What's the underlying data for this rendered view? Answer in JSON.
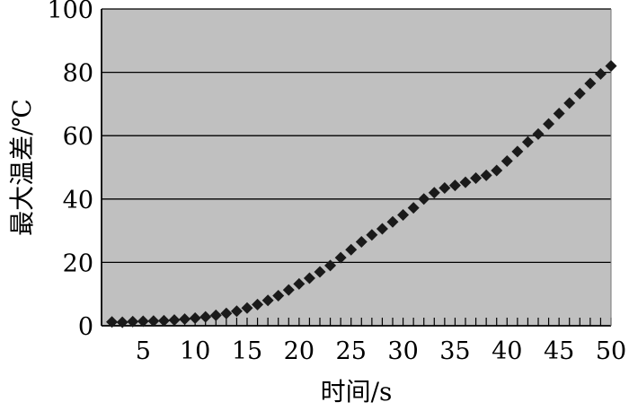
{
  "chart_data": {
    "type": "scatter",
    "xlabel": "时间/s",
    "ylabel": "最大温差/℃",
    "xlim": [
      1,
      50
    ],
    "ylim": [
      0,
      100
    ],
    "x_ticks": [
      5,
      10,
      15,
      20,
      25,
      30,
      35,
      40,
      45,
      50
    ],
    "y_ticks": [
      0,
      20,
      40,
      60,
      80,
      100
    ],
    "grid": "horizontal",
    "legend": "none",
    "colors": {
      "plot_background": "#c0c0c0",
      "marker": "#1a1a1a",
      "gridline": "#000000"
    },
    "series": [
      {
        "x": [
          2,
          3,
          4,
          5,
          6,
          7,
          8,
          9,
          10,
          11,
          12,
          13,
          14,
          15,
          16,
          17,
          18,
          19,
          20,
          21,
          22,
          23,
          24,
          25,
          26,
          27,
          28,
          29,
          30,
          31,
          32,
          33,
          34,
          35,
          36,
          37,
          38,
          39,
          40,
          41,
          42,
          43,
          44,
          45,
          46,
          47,
          48,
          49,
          50
        ],
        "y": [
          1.2,
          1.1,
          1.3,
          1.4,
          1.5,
          1.6,
          1.8,
          2.1,
          2.4,
          2.8,
          3.3,
          3.9,
          4.6,
          5.6,
          6.7,
          8.0,
          9.5,
          11.3,
          13.2,
          15.0,
          17.0,
          19.0,
          21.5,
          24.0,
          26.5,
          28.7,
          30.6,
          32.8,
          35.0,
          37.2,
          40.0,
          42.0,
          43.5,
          44.3,
          45.3,
          46.6,
          47.5,
          49.0,
          52.0,
          55.0,
          58.0,
          60.5,
          63.7,
          67.0,
          70.3,
          73.3,
          76.5,
          79.5,
          82.0
        ]
      }
    ]
  }
}
